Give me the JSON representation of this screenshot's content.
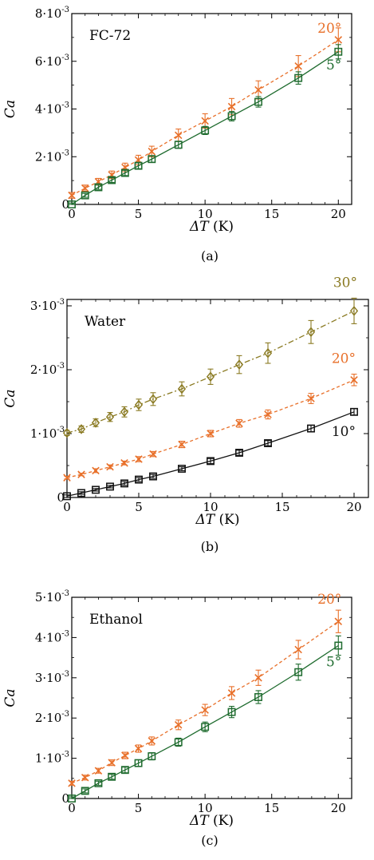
{
  "figure": {
    "sublabels": [
      "(a)",
      "(b)",
      "(c)"
    ]
  },
  "chart_data": [
    {
      "type": "line",
      "title": "FC-72",
      "xlabel_symbol": "ΔT",
      "xlabel_unit": "(K)",
      "ylabel": "Ca",
      "xlim": [
        0,
        21
      ],
      "ylim": [
        0,
        0.008
      ],
      "xticks": [
        "0",
        "5",
        "10",
        "15",
        "20"
      ],
      "yticks": [
        {
          "value": 0,
          "mant": "0",
          "exp": ""
        },
        {
          "value": 0.002,
          "mant": "2·10",
          "exp": "-3"
        },
        {
          "value": 0.004,
          "mant": "4·10",
          "exp": "-3"
        },
        {
          "value": 0.006,
          "mant": "6·10",
          "exp": "-3"
        },
        {
          "value": 0.008,
          "mant": "8·10",
          "exp": "-3"
        }
      ],
      "grid": false,
      "legend": "none",
      "series": [
        {
          "name": "20°",
          "color": "#e8702a",
          "marker": "x",
          "dash": "4,3",
          "x": [
            0,
            1,
            2,
            3,
            4,
            5,
            6,
            8,
            10,
            12,
            14,
            17,
            20
          ],
          "y": [
            0.00038,
            0.00068,
            0.00095,
            0.00124,
            0.00155,
            0.00186,
            0.00222,
            0.0029,
            0.0035,
            0.0041,
            0.0048,
            0.0058,
            0.0069
          ],
          "err": [
            0.00012,
            0.00013,
            0.00014,
            0.00016,
            0.00018,
            0.0002,
            0.00022,
            0.00026,
            0.0003,
            0.00034,
            0.00038,
            0.00044,
            0.0005
          ]
        },
        {
          "name": "5°",
          "color": "#1e6b2e",
          "marker": "square",
          "dash": "",
          "x": [
            0,
            1,
            2,
            3,
            4,
            5,
            6,
            8,
            10,
            12,
            14,
            17,
            20
          ],
          "y": [
            0.0,
            0.00038,
            0.00072,
            0.00102,
            0.00132,
            0.00162,
            0.0019,
            0.0025,
            0.0031,
            0.0037,
            0.0043,
            0.0053,
            0.0064
          ],
          "err": [
            6e-05,
            8e-05,
            9e-05,
            0.0001,
            0.00011,
            0.00012,
            0.00013,
            0.00015,
            0.00017,
            0.0002,
            0.00022,
            0.00026,
            0.0003
          ]
        }
      ]
    },
    {
      "type": "line",
      "title": "Water",
      "xlabel_symbol": "ΔT",
      "xlabel_unit": "(K)",
      "ylabel": "Ca",
      "xlim": [
        0,
        21
      ],
      "ylim": [
        0,
        0.0031
      ],
      "xticks": [
        "0",
        "5",
        "10",
        "15",
        "20"
      ],
      "yticks": [
        {
          "value": 0,
          "mant": "0",
          "exp": ""
        },
        {
          "value": 0.001,
          "mant": "1·10",
          "exp": "-3"
        },
        {
          "value": 0.002,
          "mant": "2·10",
          "exp": "-3"
        },
        {
          "value": 0.003,
          "mant": "3·10",
          "exp": "-3"
        }
      ],
      "grid": false,
      "legend": "none",
      "series": [
        {
          "name": "30°",
          "color": "#8a7a22",
          "marker": "diamond",
          "dash": "7,3,2,3",
          "x": [
            0,
            1,
            2,
            3,
            4,
            5,
            6,
            8,
            10,
            12,
            14,
            17,
            20
          ],
          "y": [
            0.00101,
            0.00107,
            0.00117,
            0.00126,
            0.00134,
            0.00145,
            0.00154,
            0.0017,
            0.00189,
            0.00208,
            0.00226,
            0.00259,
            0.00292
          ],
          "err": [
            4e-05,
            5e-05,
            6e-05,
            7e-05,
            8e-05,
            9e-05,
            0.0001,
            0.00011,
            0.00012,
            0.00014,
            0.00016,
            0.00018,
            0.0002
          ]
        },
        {
          "name": "20°",
          "color": "#e8702a",
          "marker": "x",
          "dash": "4,3",
          "x": [
            0,
            1,
            2,
            3,
            4,
            5,
            6,
            8,
            10,
            12,
            14,
            17,
            20
          ],
          "y": [
            0.00031,
            0.00036,
            0.00042,
            0.00048,
            0.00054,
            0.0006,
            0.00068,
            0.00083,
            0.001,
            0.00116,
            0.0013,
            0.00155,
            0.00184
          ],
          "err": [
            2e-05,
            2e-05,
            3e-05,
            3e-05,
            3e-05,
            4e-05,
            4e-05,
            5e-05,
            5e-05,
            6e-05,
            7e-05,
            8e-05,
            9e-05
          ]
        },
        {
          "name": "10°",
          "color": "#111111",
          "marker": "square",
          "dash": "",
          "x": [
            0,
            1,
            2,
            3,
            4,
            5,
            6,
            8,
            10,
            12,
            14,
            17,
            20
          ],
          "y": [
            2e-05,
            7e-05,
            0.00012,
            0.00017,
            0.00022,
            0.00028,
            0.00033,
            0.00045,
            0.00057,
            0.0007,
            0.00085,
            0.00108,
            0.00134
          ],
          "err": [
            2e-05,
            2e-05,
            2e-05,
            2e-05,
            3e-05,
            3e-05,
            3e-05,
            3e-05,
            4e-05,
            4e-05,
            4e-05,
            5e-05,
            5e-05
          ]
        }
      ]
    },
    {
      "type": "line",
      "title": "Ethanol",
      "xlabel_symbol": "ΔT",
      "xlabel_unit": "(K)",
      "ylabel": "Ca",
      "xlim": [
        0,
        21
      ],
      "ylim": [
        0,
        0.005
      ],
      "xticks": [
        "0",
        "5",
        "10",
        "15",
        "20"
      ],
      "yticks": [
        {
          "value": 0,
          "mant": "0",
          "exp": ""
        },
        {
          "value": 0.001,
          "mant": "1·10",
          "exp": "-3"
        },
        {
          "value": 0.002,
          "mant": "2·10",
          "exp": "-3"
        },
        {
          "value": 0.003,
          "mant": "3·10",
          "exp": "-3"
        },
        {
          "value": 0.004,
          "mant": "4·10",
          "exp": "-3"
        },
        {
          "value": 0.005,
          "mant": "5·10",
          "exp": "-3"
        }
      ],
      "grid": false,
      "legend": "none",
      "series": [
        {
          "name": "20°",
          "color": "#e8702a",
          "marker": "x",
          "dash": "4,3",
          "x": [
            0,
            1,
            2,
            3,
            4,
            5,
            6,
            8,
            10,
            12,
            14,
            17,
            20
          ],
          "y": [
            0.00038,
            0.00052,
            0.00069,
            0.00089,
            0.00107,
            0.00124,
            0.00143,
            0.00183,
            0.0022,
            0.00262,
            0.003,
            0.0037,
            0.0044
          ],
          "err": [
            5e-05,
            6e-05,
            6e-05,
            7e-05,
            8e-05,
            9e-05,
            0.0001,
            0.00012,
            0.00014,
            0.00016,
            0.00019,
            0.00023,
            0.00028
          ]
        },
        {
          "name": "5°",
          "color": "#1e6b2e",
          "marker": "square",
          "dash": "",
          "x": [
            0,
            1,
            2,
            3,
            4,
            5,
            6,
            8,
            10,
            12,
            14,
            17,
            20
          ],
          "y": [
            0.0,
            0.00019,
            0.00038,
            0.00054,
            0.00071,
            0.00088,
            0.00105,
            0.0014,
            0.00178,
            0.00215,
            0.00252,
            0.00314,
            0.0038
          ],
          "err": [
            4e-05,
            5e-05,
            5e-05,
            6e-05,
            7e-05,
            8e-05,
            9e-05,
            0.0001,
            0.00012,
            0.00014,
            0.00016,
            0.0002,
            0.00024
          ]
        }
      ]
    }
  ]
}
